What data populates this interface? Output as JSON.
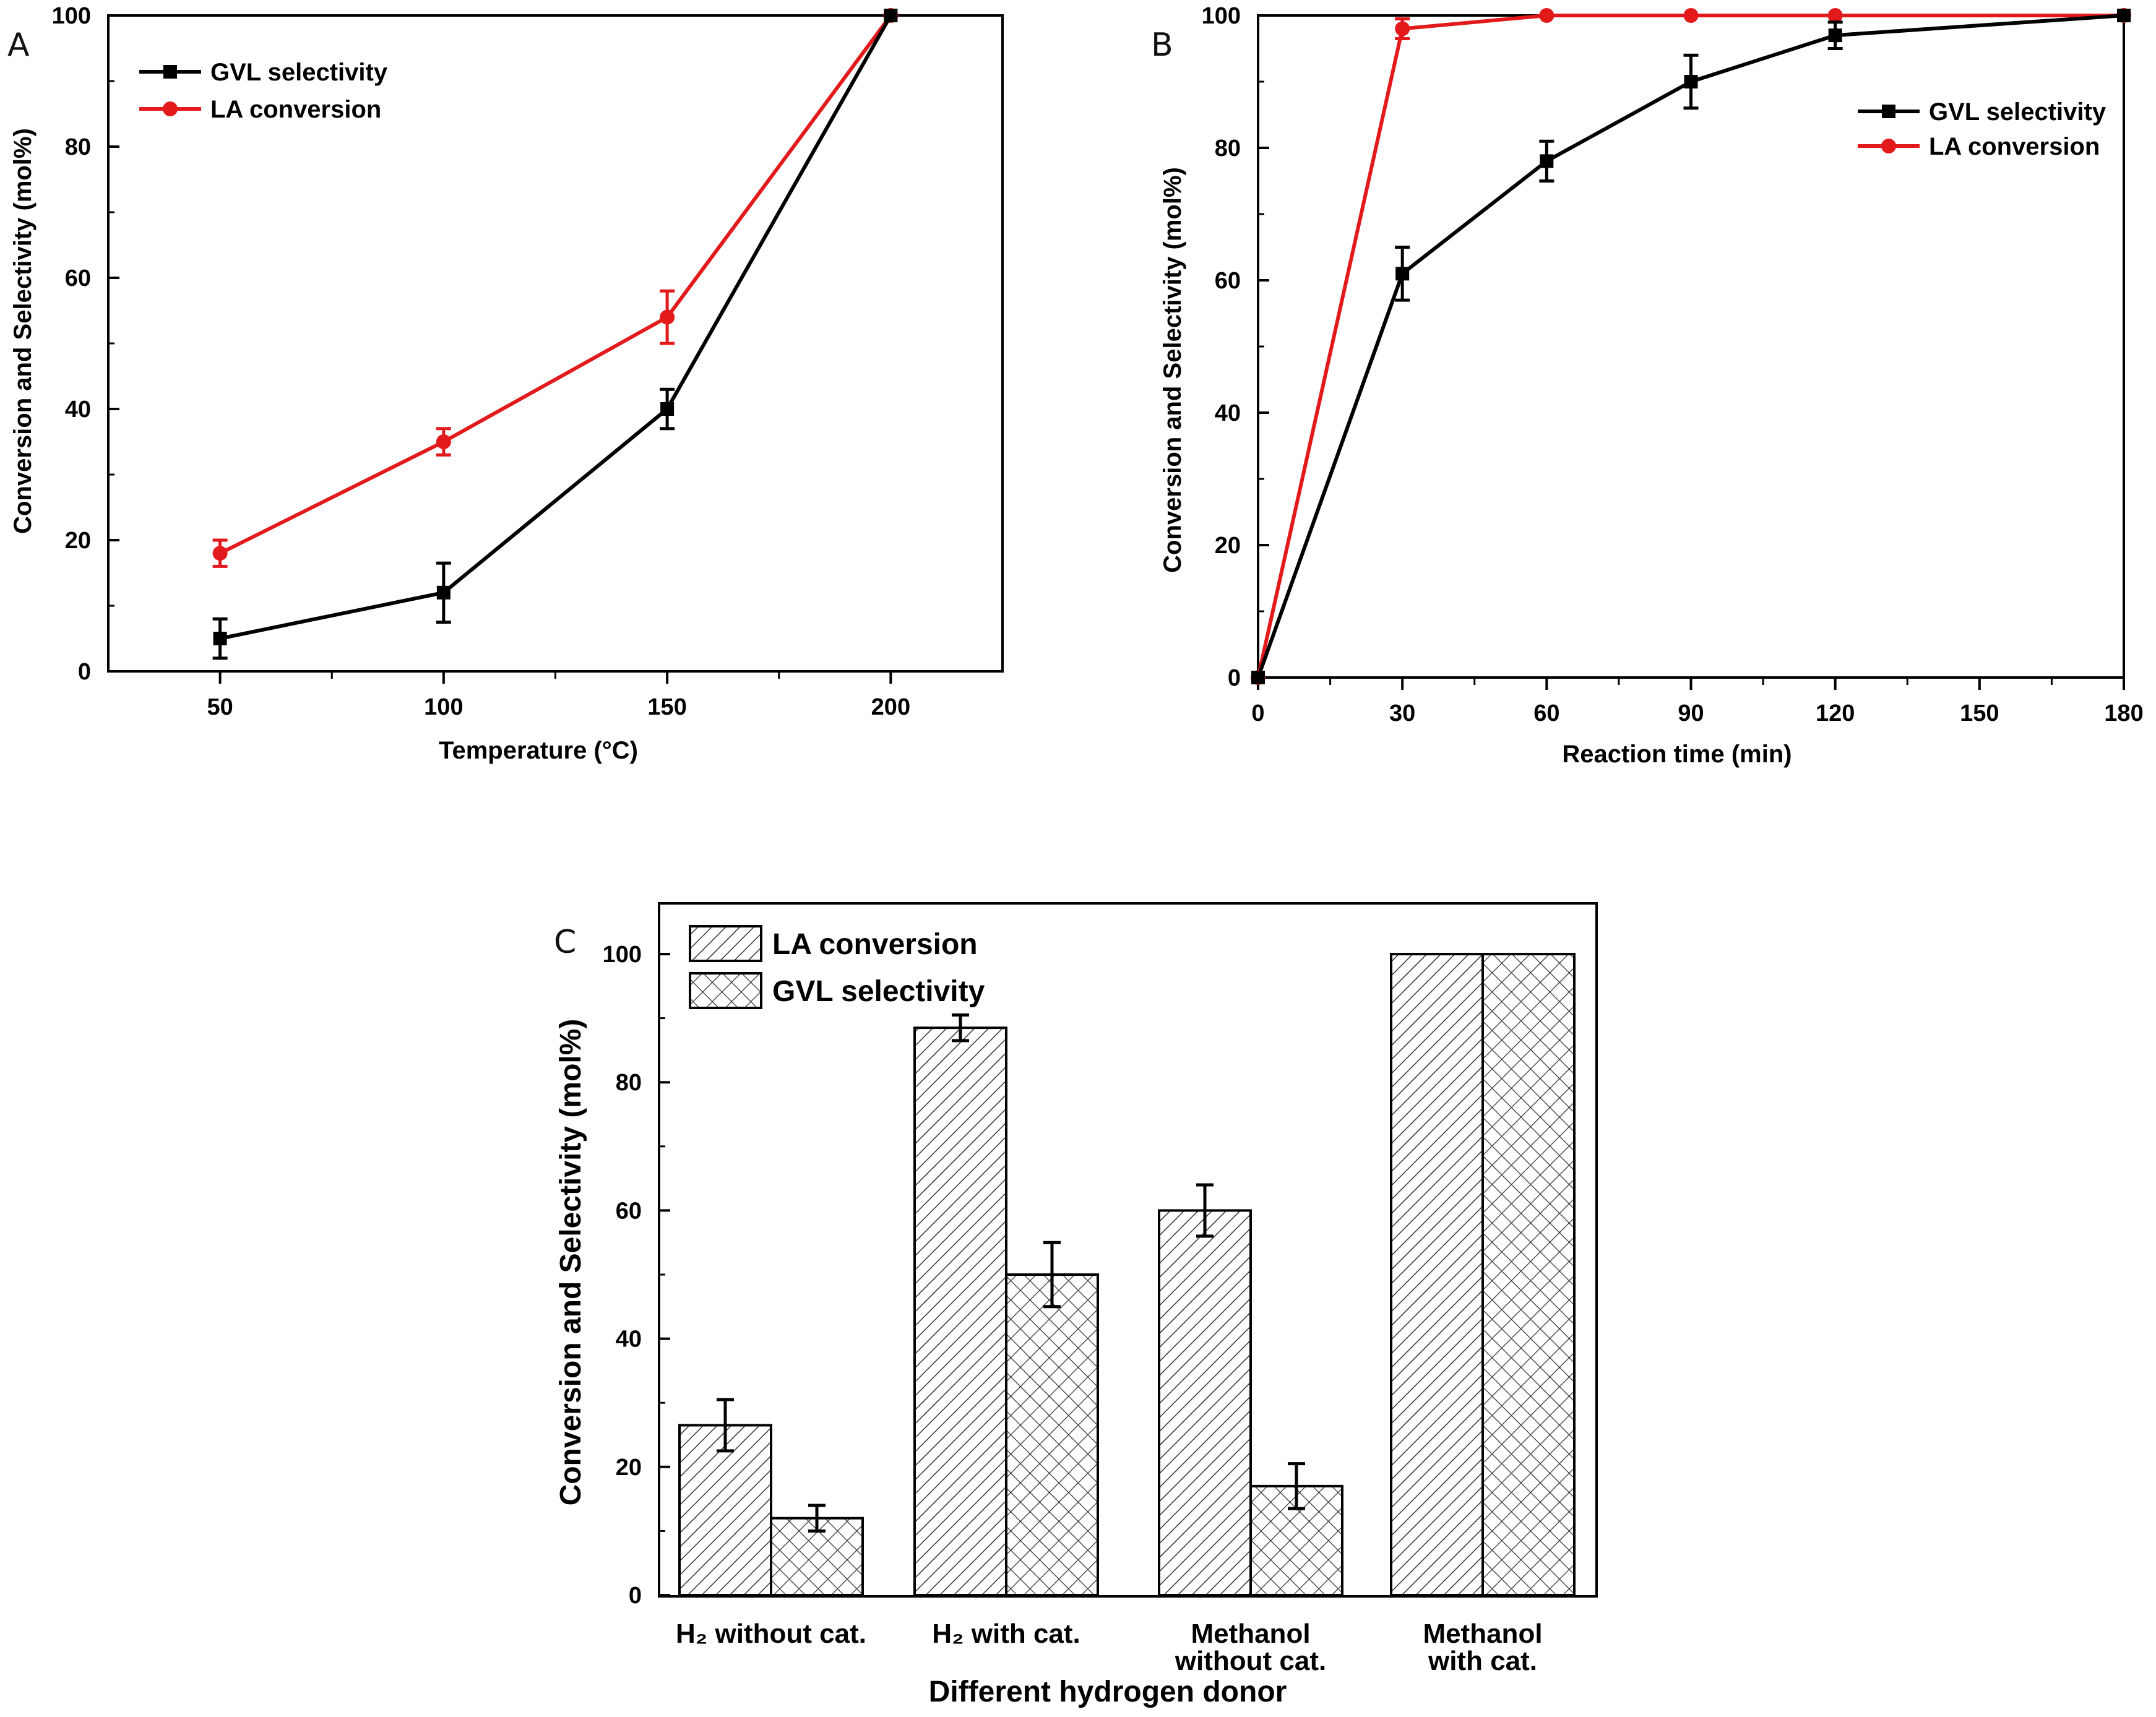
{
  "chart_data": [
    {
      "panel": "A",
      "type": "line",
      "xlabel": "Temperature (°C)",
      "ylabel": "Conversion and Selectivity (mol%)",
      "xlim": [
        25,
        225
      ],
      "ylim": [
        0,
        100
      ],
      "xticks": [
        50,
        100,
        150,
        200
      ],
      "yticks": [
        0,
        20,
        40,
        60,
        80,
        100
      ],
      "legend_position": "top-left",
      "series": [
        {
          "name": "GVL selectivity",
          "color": "#000000",
          "marker": "square",
          "x": [
            50,
            100,
            150,
            200
          ],
          "y": [
            5,
            12,
            40,
            100
          ],
          "err": [
            3,
            4.5,
            3,
            0
          ]
        },
        {
          "name": "LA conversion",
          "color": "#e31a1c",
          "marker": "circle",
          "x": [
            50,
            100,
            150,
            200
          ],
          "y": [
            18,
            35,
            54,
            100
          ],
          "err": [
            2,
            2,
            4,
            0
          ]
        }
      ]
    },
    {
      "panel": "B",
      "type": "line",
      "xlabel": "Reaction time (min)",
      "ylabel": "Conversion and Selectivity (mol%)",
      "xlim": [
        0,
        180
      ],
      "ylim": [
        0,
        100
      ],
      "xticks": [
        0,
        30,
        60,
        90,
        120,
        150,
        180
      ],
      "yticks": [
        0,
        20,
        40,
        60,
        80,
        100
      ],
      "legend_position": "top-right",
      "series": [
        {
          "name": "GVL selectivity",
          "color": "#000000",
          "marker": "square",
          "x": [
            0,
            30,
            60,
            90,
            120,
            180
          ],
          "y": [
            0,
            61,
            78,
            90,
            97,
            100
          ],
          "err": [
            0,
            4,
            3,
            4,
            2,
            0
          ]
        },
        {
          "name": "LA conversion",
          "color": "#e31a1c",
          "marker": "circle",
          "x": [
            0,
            30,
            60,
            90,
            120,
            180
          ],
          "y": [
            0,
            98,
            100,
            100,
            100,
            100
          ],
          "err": [
            0,
            1.5,
            0,
            0,
            0,
            0
          ]
        }
      ]
    },
    {
      "panel": "C",
      "type": "bar",
      "xlabel": "Different hydrogen donor",
      "ylabel": "Conversion and Selectivity (mol%)",
      "ylim": [
        0,
        100
      ],
      "yticks": [
        0,
        20,
        40,
        60,
        80,
        100
      ],
      "legend_position": "top-left",
      "categories": [
        [
          "H₂ without cat."
        ],
        [
          "H₂ with cat."
        ],
        [
          "Methanol",
          "without cat."
        ],
        [
          "Methanol",
          "with cat."
        ]
      ],
      "series": [
        {
          "name": "LA conversion",
          "pattern": "diagonal-hatch",
          "values": [
            26.5,
            88.5,
            60,
            100
          ],
          "err": [
            4,
            2,
            4,
            0
          ]
        },
        {
          "name": "GVL selectivity",
          "pattern": "cross-hatch",
          "values": [
            12,
            50,
            17,
            100
          ],
          "err": [
            2,
            5,
            3.5,
            0
          ]
        }
      ]
    }
  ]
}
